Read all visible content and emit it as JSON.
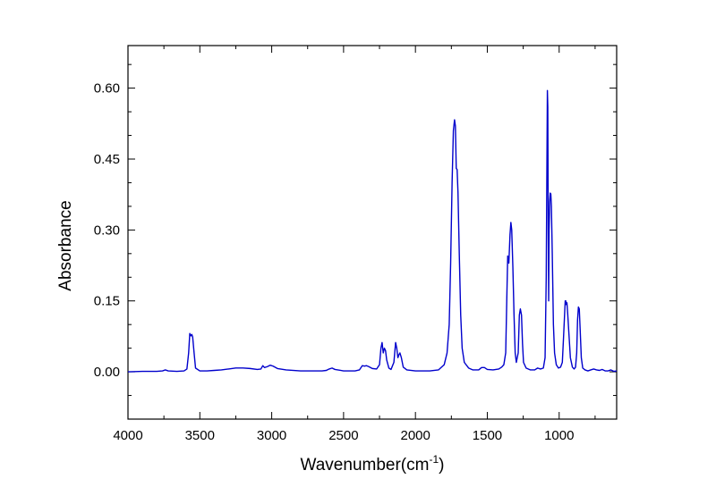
{
  "chart_data": {
    "type": "line",
    "title": "",
    "xlabel": {
      "base": "Wavenumber(cm",
      "superscript": "-1",
      "suffix": ")"
    },
    "ylabel": "Absorbance",
    "xlim": [
      4000,
      600
    ],
    "ylim": [
      -0.1,
      0.69
    ],
    "x_reversed": true,
    "grid": false,
    "legend": "none",
    "x_ticks": [
      {
        "value": 4000,
        "label": "4000"
      },
      {
        "value": 3500,
        "label": "3500"
      },
      {
        "value": 3000,
        "label": "3000"
      },
      {
        "value": 2500,
        "label": "2500"
      },
      {
        "value": 2000,
        "label": "2000"
      },
      {
        "value": 1500,
        "label": "1500"
      },
      {
        "value": 1000,
        "label": "1000"
      }
    ],
    "y_ticks": [
      {
        "value": 0.0,
        "label": "0.00"
      },
      {
        "value": 0.15,
        "label": "0.15"
      },
      {
        "value": 0.3,
        "label": "0.30"
      },
      {
        "value": 0.45,
        "label": "0.45"
      },
      {
        "value": 0.6,
        "label": "0.60"
      }
    ],
    "series": [
      {
        "color": "#0000cc",
        "points": [
          [
            4000,
            0.0
          ],
          [
            3900,
            0.001
          ],
          [
            3800,
            0.001
          ],
          [
            3760,
            0.002
          ],
          [
            3740,
            0.004
          ],
          [
            3720,
            0.002
          ],
          [
            3660,
            0.001
          ],
          [
            3610,
            0.002
          ],
          [
            3590,
            0.006
          ],
          [
            3578,
            0.04
          ],
          [
            3570,
            0.081
          ],
          [
            3562,
            0.076
          ],
          [
            3556,
            0.079
          ],
          [
            3550,
            0.074
          ],
          [
            3540,
            0.04
          ],
          [
            3530,
            0.008
          ],
          [
            3500,
            0.002
          ],
          [
            3450,
            0.002
          ],
          [
            3400,
            0.003
          ],
          [
            3350,
            0.004
          ],
          [
            3300,
            0.006
          ],
          [
            3250,
            0.008
          ],
          [
            3200,
            0.008
          ],
          [
            3150,
            0.007
          ],
          [
            3100,
            0.005
          ],
          [
            3075,
            0.006
          ],
          [
            3062,
            0.013
          ],
          [
            3050,
            0.009
          ],
          [
            3030,
            0.011
          ],
          [
            3010,
            0.014
          ],
          [
            2990,
            0.012
          ],
          [
            2960,
            0.007
          ],
          [
            2900,
            0.004
          ],
          [
            2800,
            0.002
          ],
          [
            2700,
            0.002
          ],
          [
            2650,
            0.002
          ],
          [
            2620,
            0.003
          ],
          [
            2600,
            0.006
          ],
          [
            2580,
            0.008
          ],
          [
            2560,
            0.005
          ],
          [
            2500,
            0.002
          ],
          [
            2420,
            0.002
          ],
          [
            2390,
            0.004
          ],
          [
            2370,
            0.013
          ],
          [
            2355,
            0.012
          ],
          [
            2340,
            0.013
          ],
          [
            2325,
            0.011
          ],
          [
            2300,
            0.007
          ],
          [
            2270,
            0.006
          ],
          [
            2250,
            0.015
          ],
          [
            2240,
            0.05
          ],
          [
            2232,
            0.062
          ],
          [
            2224,
            0.04
          ],
          [
            2216,
            0.05
          ],
          [
            2208,
            0.045
          ],
          [
            2200,
            0.025
          ],
          [
            2185,
            0.008
          ],
          [
            2170,
            0.005
          ],
          [
            2150,
            0.02
          ],
          [
            2138,
            0.062
          ],
          [
            2130,
            0.05
          ],
          [
            2122,
            0.03
          ],
          [
            2115,
            0.036
          ],
          [
            2108,
            0.04
          ],
          [
            2098,
            0.03
          ],
          [
            2085,
            0.01
          ],
          [
            2060,
            0.004
          ],
          [
            2000,
            0.002
          ],
          [
            1900,
            0.002
          ],
          [
            1840,
            0.004
          ],
          [
            1800,
            0.015
          ],
          [
            1780,
            0.04
          ],
          [
            1765,
            0.1
          ],
          [
            1755,
            0.23
          ],
          [
            1745,
            0.4
          ],
          [
            1736,
            0.51
          ],
          [
            1728,
            0.533
          ],
          [
            1722,
            0.52
          ],
          [
            1716,
            0.43
          ],
          [
            1710,
            0.428
          ],
          [
            1704,
            0.38
          ],
          [
            1695,
            0.25
          ],
          [
            1685,
            0.12
          ],
          [
            1675,
            0.05
          ],
          [
            1660,
            0.02
          ],
          [
            1630,
            0.008
          ],
          [
            1600,
            0.004
          ],
          [
            1560,
            0.004
          ],
          [
            1540,
            0.009
          ],
          [
            1520,
            0.009
          ],
          [
            1500,
            0.005
          ],
          [
            1460,
            0.004
          ],
          [
            1420,
            0.006
          ],
          [
            1400,
            0.01
          ],
          [
            1385,
            0.015
          ],
          [
            1372,
            0.04
          ],
          [
            1364,
            0.16
          ],
          [
            1358,
            0.245
          ],
          [
            1350,
            0.23
          ],
          [
            1342,
            0.29
          ],
          [
            1336,
            0.316
          ],
          [
            1330,
            0.3
          ],
          [
            1322,
            0.22
          ],
          [
            1314,
            0.12
          ],
          [
            1306,
            0.04
          ],
          [
            1298,
            0.02
          ],
          [
            1285,
            0.04
          ],
          [
            1277,
            0.12
          ],
          [
            1270,
            0.133
          ],
          [
            1262,
            0.12
          ],
          [
            1255,
            0.06
          ],
          [
            1248,
            0.02
          ],
          [
            1230,
            0.008
          ],
          [
            1200,
            0.004
          ],
          [
            1170,
            0.004
          ],
          [
            1150,
            0.008
          ],
          [
            1130,
            0.006
          ],
          [
            1110,
            0.008
          ],
          [
            1098,
            0.03
          ],
          [
            1090,
            0.2
          ],
          [
            1085,
            0.45
          ],
          [
            1082,
            0.595
          ],
          [
            1079,
            0.56
          ],
          [
            1076,
            0.3
          ],
          [
            1073,
            0.15
          ],
          [
            1070,
            0.3
          ],
          [
            1066,
            0.36
          ],
          [
            1062,
            0.378
          ],
          [
            1058,
            0.376
          ],
          [
            1054,
            0.35
          ],
          [
            1048,
            0.25
          ],
          [
            1040,
            0.1
          ],
          [
            1032,
            0.04
          ],
          [
            1020,
            0.015
          ],
          [
            1005,
            0.008
          ],
          [
            990,
            0.01
          ],
          [
            978,
            0.02
          ],
          [
            970,
            0.07
          ],
          [
            964,
            0.11
          ],
          [
            958,
            0.15
          ],
          [
            954,
            0.15
          ],
          [
            950,
            0.142
          ],
          [
            946,
            0.146
          ],
          [
            940,
            0.12
          ],
          [
            932,
            0.08
          ],
          [
            922,
            0.03
          ],
          [
            908,
            0.01
          ],
          [
            896,
            0.006
          ],
          [
            886,
            0.01
          ],
          [
            878,
            0.04
          ],
          [
            872,
            0.11
          ],
          [
            866,
            0.137
          ],
          [
            860,
            0.133
          ],
          [
            854,
            0.09
          ],
          [
            846,
            0.03
          ],
          [
            836,
            0.008
          ],
          [
            820,
            0.004
          ],
          [
            800,
            0.002
          ],
          [
            780,
            0.004
          ],
          [
            760,
            0.006
          ],
          [
            740,
            0.004
          ],
          [
            720,
            0.003
          ],
          [
            700,
            0.005
          ],
          [
            680,
            0.002
          ],
          [
            660,
            0.002
          ],
          [
            640,
            0.004
          ],
          [
            620,
            0.001
          ],
          [
            600,
            0.002
          ]
        ]
      }
    ]
  }
}
